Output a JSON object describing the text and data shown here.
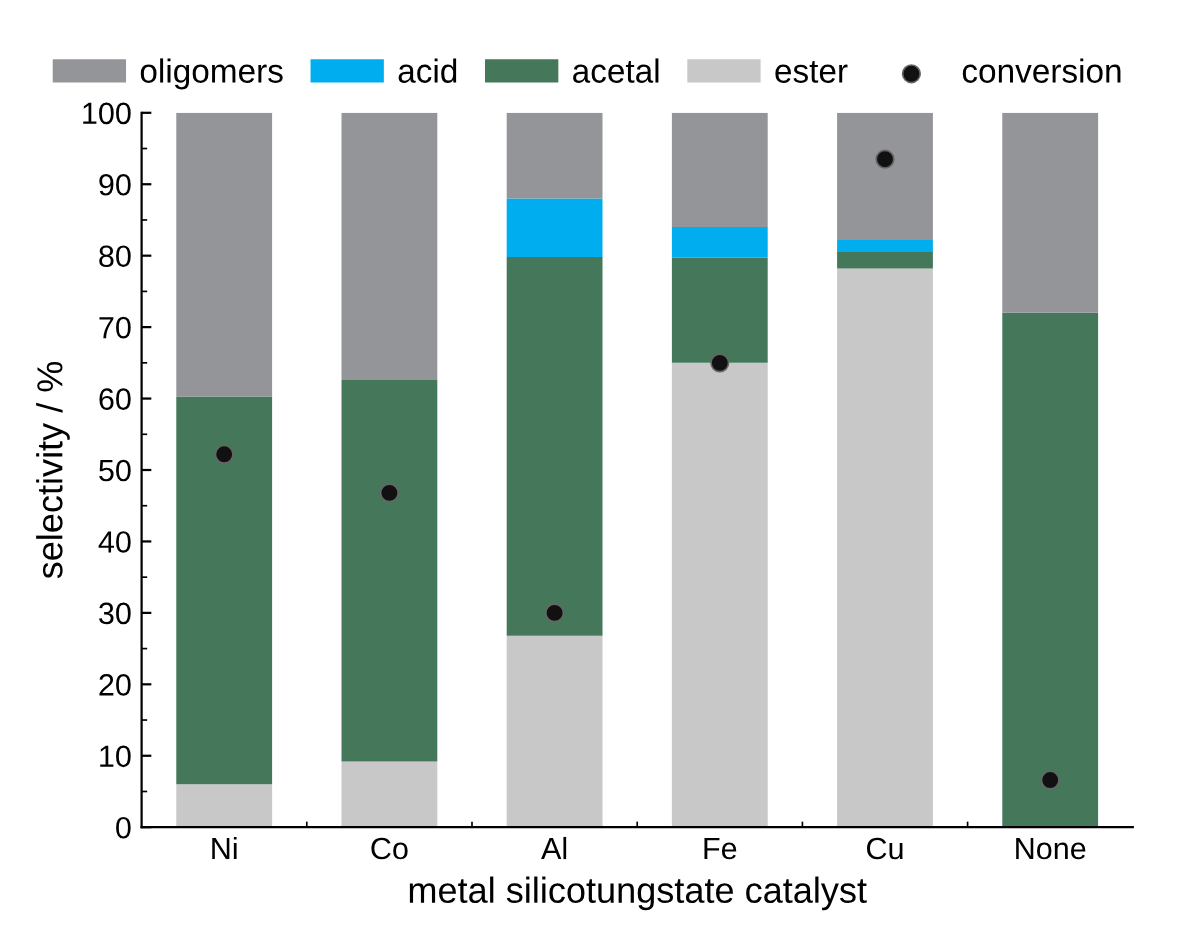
{
  "chart_data": {
    "type": "bar",
    "stacked": true,
    "xlabel": "metal silicotungstate catalyst",
    "ylabel": "selectivity / %",
    "categories": [
      "Ni",
      "Co",
      "Al",
      "Fe",
      "Cu",
      "None"
    ],
    "series": [
      {
        "name": "ester",
        "color": "#c8c8c9",
        "values": [
          6.0,
          9.2,
          26.8,
          65.0,
          78.2,
          0
        ]
      },
      {
        "name": "acetal",
        "color": "#45775a",
        "values": [
          54.3,
          53.4,
          53.0,
          14.7,
          2.3,
          72.0
        ]
      },
      {
        "name": "acid",
        "color": "#00aeef",
        "values": [
          0,
          0,
          8.2,
          4.3,
          1.7,
          0
        ]
      },
      {
        "name": "oligomers",
        "color": "#949598",
        "values": [
          39.7,
          37.4,
          12.0,
          16.0,
          17.8,
          28.0
        ]
      },
      {
        "name": "conversion",
        "type": "scatter",
        "color": "#111111",
        "x": [
          "Ni",
          "Co",
          "Al",
          "Fe",
          "Cu",
          "None"
        ],
        "values": [
          52.2,
          46.8,
          30.0,
          65.0,
          93.5,
          6.6
        ]
      }
    ],
    "ylim": [
      0,
      100
    ],
    "yticks": [
      0,
      10,
      20,
      30,
      40,
      50,
      60,
      70,
      80,
      90,
      100
    ],
    "grid": false,
    "legend": "top",
    "marker": "circle"
  }
}
